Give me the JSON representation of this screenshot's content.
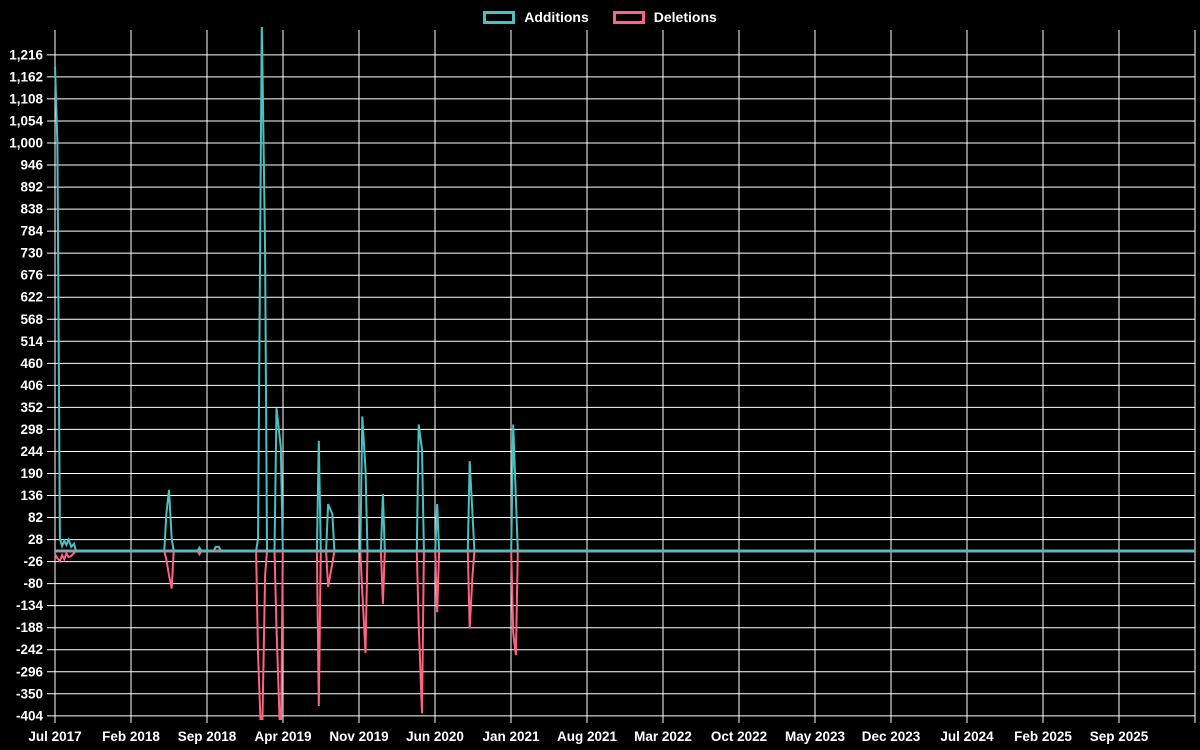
{
  "colors": {
    "background": "#000000",
    "grid": "#ffffff",
    "text": "#ffffff",
    "additions": "#4bc0c0",
    "deletions": "#ff6384",
    "zero_line": "#8da2ac"
  },
  "legend": {
    "items": [
      {
        "label": "Additions",
        "color": "#4bc0c0"
      },
      {
        "label": "Deletions",
        "color": "#ff6384"
      }
    ]
  },
  "chart_data": {
    "type": "line",
    "title": "",
    "xlabel": "",
    "ylabel": "",
    "grid": true,
    "legend_position": "top-center",
    "x_axis": {
      "tick_labels": [
        "Jul 2017",
        "Feb 2018",
        "Sep 2018",
        "Apr 2019",
        "Nov 2019",
        "Jun 2020",
        "Jan 2021",
        "Aug 2021",
        "Mar 2022",
        "Oct 2022",
        "May 2023",
        "Dec 2023",
        "Jul 2024",
        "Feb 2025",
        "Sep 2025"
      ],
      "tick_interval_months": 7,
      "domain_months": [
        0,
        105
      ]
    },
    "y_axis": {
      "tick_labels": [
        "1,216",
        "1,162",
        "1,108",
        "1,054",
        "1,000",
        "946",
        "892",
        "838",
        "784",
        "730",
        "676",
        "622",
        "568",
        "514",
        "460",
        "406",
        "352",
        "298",
        "244",
        "190",
        "136",
        "82",
        "28",
        "-26",
        "-80",
        "-134",
        "-188",
        "-242",
        "-296",
        "-350",
        "-404"
      ],
      "tick_values": [
        1216,
        1162,
        1108,
        1054,
        1000,
        946,
        892,
        838,
        784,
        730,
        676,
        622,
        568,
        514,
        460,
        406,
        352,
        298,
        244,
        190,
        136,
        82,
        28,
        -26,
        -80,
        -134,
        -188,
        -242,
        -296,
        -350,
        -404
      ],
      "tick_step": 54,
      "ylim": [
        -413,
        1283
      ]
    },
    "baseline": {
      "value": 0
    },
    "series": [
      {
        "name": "Additions",
        "color": "#4bc0c0",
        "points_unit": "months_from_Jul_2017_vs_lines",
        "spikes": [
          [
            0.0,
            1187
          ],
          [
            0.22,
            1000
          ],
          [
            0.45,
            30
          ],
          [
            0.65,
            12
          ],
          [
            0.85,
            25
          ],
          [
            1.05,
            15
          ],
          [
            1.25,
            28
          ],
          [
            1.5,
            10
          ],
          [
            1.75,
            18
          ],
          [
            10.25,
            90
          ],
          [
            10.5,
            150
          ],
          [
            10.75,
            30
          ],
          [
            13.3,
            8
          ],
          [
            14.8,
            10
          ],
          [
            15.1,
            10
          ],
          [
            18.7,
            30
          ],
          [
            19.05,
            1300
          ],
          [
            19.35,
            735
          ],
          [
            20.4,
            350
          ],
          [
            20.8,
            255
          ],
          [
            24.3,
            270
          ],
          [
            25.15,
            115
          ],
          [
            25.55,
            90
          ],
          [
            28.3,
            330
          ],
          [
            28.6,
            200
          ],
          [
            30.2,
            140
          ],
          [
            33.5,
            310
          ],
          [
            33.8,
            248
          ],
          [
            35.2,
            115
          ],
          [
            38.2,
            220
          ],
          [
            38.45,
            90
          ],
          [
            42.2,
            310
          ],
          [
            42.45,
            130
          ]
        ]
      },
      {
        "name": "Deletions",
        "color": "#ff6384",
        "points_unit": "months_from_Jul_2017_vs_lines",
        "spikes": [
          [
            0.0,
            -8
          ],
          [
            0.22,
            -18
          ],
          [
            0.45,
            -25
          ],
          [
            0.65,
            -10
          ],
          [
            0.85,
            -20
          ],
          [
            1.05,
            -6
          ],
          [
            1.25,
            -15
          ],
          [
            1.5,
            -12
          ],
          [
            1.75,
            -5
          ],
          [
            10.25,
            -20
          ],
          [
            10.5,
            -60
          ],
          [
            10.75,
            -92
          ],
          [
            13.3,
            -8
          ],
          [
            18.7,
            -250
          ],
          [
            19.05,
            -500
          ],
          [
            19.35,
            -60
          ],
          [
            20.4,
            -190
          ],
          [
            20.8,
            -500
          ],
          [
            24.3,
            -380
          ],
          [
            25.15,
            -88
          ],
          [
            25.55,
            -30
          ],
          [
            28.3,
            -100
          ],
          [
            28.6,
            -250
          ],
          [
            30.2,
            -130
          ],
          [
            33.5,
            -180
          ],
          [
            33.8,
            -398
          ],
          [
            35.2,
            -150
          ],
          [
            38.2,
            -190
          ],
          [
            38.45,
            -60
          ],
          [
            42.2,
            -200
          ],
          [
            42.45,
            -255
          ]
        ]
      }
    ]
  }
}
